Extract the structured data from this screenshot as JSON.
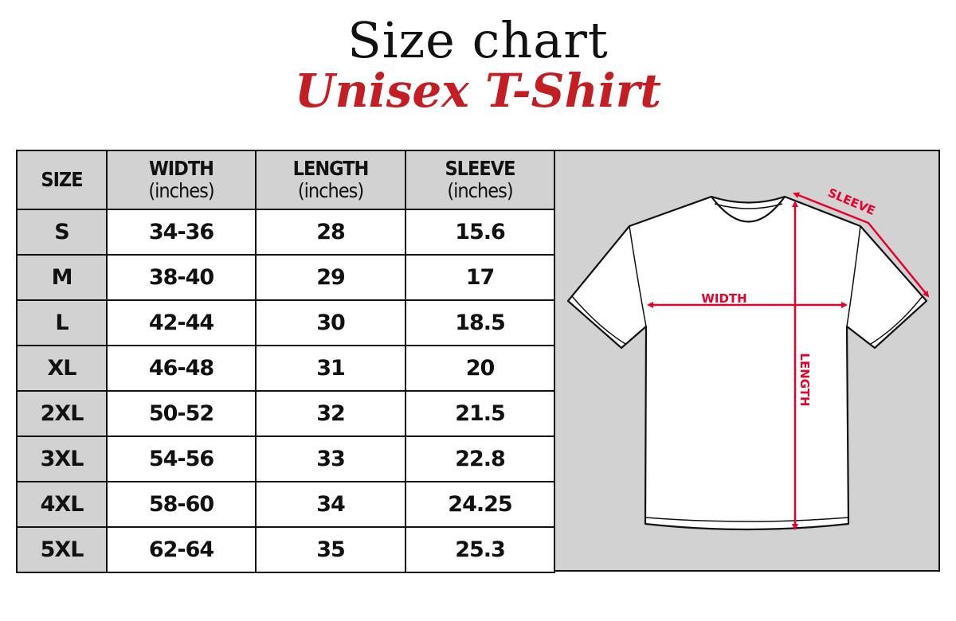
{
  "header": {
    "title": "Size chart",
    "subtitle": "Unisex T-Shirt"
  },
  "colors": {
    "accent": "#c41e24",
    "measure": "#e8002a",
    "cell_gray": "#d2d2d2"
  },
  "table": {
    "columns": [
      {
        "label": "SIZE",
        "unit": ""
      },
      {
        "label": "WIDTH",
        "unit": "(inches)"
      },
      {
        "label": "LENGTH",
        "unit": "(inches)"
      },
      {
        "label": "SLEEVE",
        "unit": "(inches)"
      }
    ],
    "rows": [
      [
        "S",
        "34-36",
        "28",
        "15.6"
      ],
      [
        "M",
        "38-40",
        "29",
        "17"
      ],
      [
        "L",
        "42-44",
        "30",
        "18.5"
      ],
      [
        "XL",
        "46-48",
        "31",
        "20"
      ],
      [
        "2XL",
        "50-52",
        "32",
        "21.5"
      ],
      [
        "3XL",
        "54-56",
        "33",
        "22.8"
      ],
      [
        "4XL",
        "58-60",
        "34",
        "24.25"
      ],
      [
        "5XL",
        "62-64",
        "35",
        "25.3"
      ]
    ]
  },
  "diagram": {
    "width_label": "WIDTH",
    "length_label": "LENGTH",
    "sleeve_label": "SLEEVE",
    "icon": "t-shirt-outline"
  }
}
